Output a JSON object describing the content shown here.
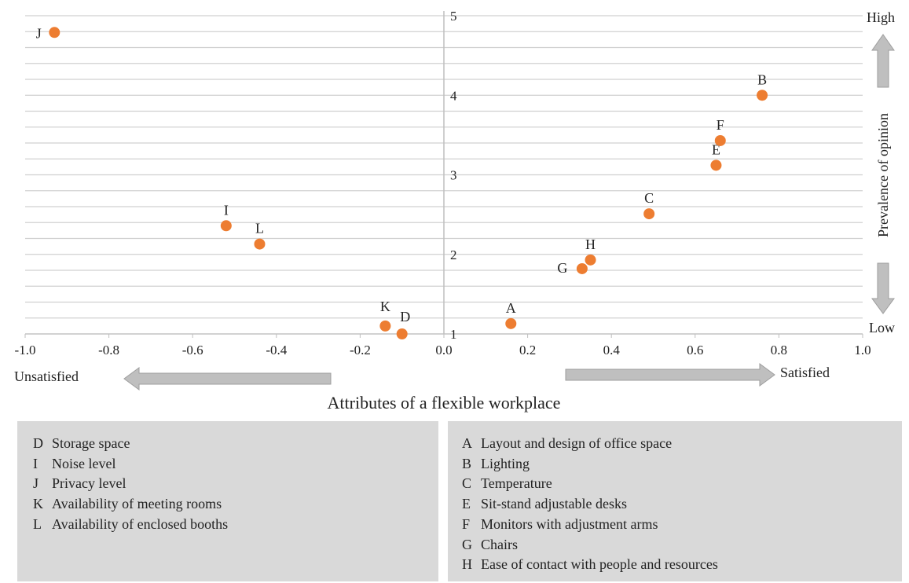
{
  "chart_data": {
    "type": "scatter",
    "xlabel": "Attributes of a flexible workplace",
    "ylabel": "Prevalence of opinion",
    "xlim": [
      -1.0,
      1.0
    ],
    "ylim": [
      1,
      5
    ],
    "x_ticks": [
      "-1.0",
      "-0.8",
      "-0.6",
      "-0.4",
      "-0.2",
      "0.0",
      "0.2",
      "0.4",
      "0.6",
      "0.8",
      "1.0"
    ],
    "y_ticks": [
      "1",
      "2",
      "3",
      "4",
      "5"
    ],
    "grid": true,
    "marker_color": "#ED7D31",
    "arrow_color": "#BFBFBF",
    "annotations": {
      "left_arrow": "Unsatisfied",
      "right_arrow": "Satisfied",
      "top": "High",
      "bottom": "Low"
    },
    "points": [
      {
        "label": "A",
        "x": 0.16,
        "y": 1.13
      },
      {
        "label": "B",
        "x": 0.76,
        "y": 4.0
      },
      {
        "label": "C",
        "x": 0.49,
        "y": 2.51
      },
      {
        "label": "D",
        "x": -0.1,
        "y": 1.0
      },
      {
        "label": "E",
        "x": 0.65,
        "y": 3.12
      },
      {
        "label": "F",
        "x": 0.66,
        "y": 3.43
      },
      {
        "label": "G",
        "x": 0.33,
        "y": 1.82
      },
      {
        "label": "H",
        "x": 0.35,
        "y": 1.93
      },
      {
        "label": "I",
        "x": -0.52,
        "y": 2.36
      },
      {
        "label": "J",
        "x": -0.93,
        "y": 4.79
      },
      {
        "label": "K",
        "x": -0.14,
        "y": 1.1
      },
      {
        "label": "L",
        "x": -0.44,
        "y": 2.13
      }
    ]
  },
  "legend": {
    "left": [
      {
        "code": "D",
        "text": "Storage space"
      },
      {
        "code": "I",
        "text": "Noise level"
      },
      {
        "code": "J",
        "text": "Privacy level"
      },
      {
        "code": "K",
        "text": "Availability  of meeting rooms"
      },
      {
        "code": "L",
        "text": "Availability  of enclosed booths"
      }
    ],
    "right": [
      {
        "code": "A",
        "text": "Layout and design of office space"
      },
      {
        "code": "B",
        "text": "Lighting"
      },
      {
        "code": "C",
        "text": "Temperature"
      },
      {
        "code": "E",
        "text": "Sit-stand adjustable desks"
      },
      {
        "code": "F",
        "text": "Monitors with adjustment arms"
      },
      {
        "code": "G",
        "text": "Chairs"
      },
      {
        "code": "H",
        "text": "Ease of contact with people and resources"
      }
    ]
  }
}
